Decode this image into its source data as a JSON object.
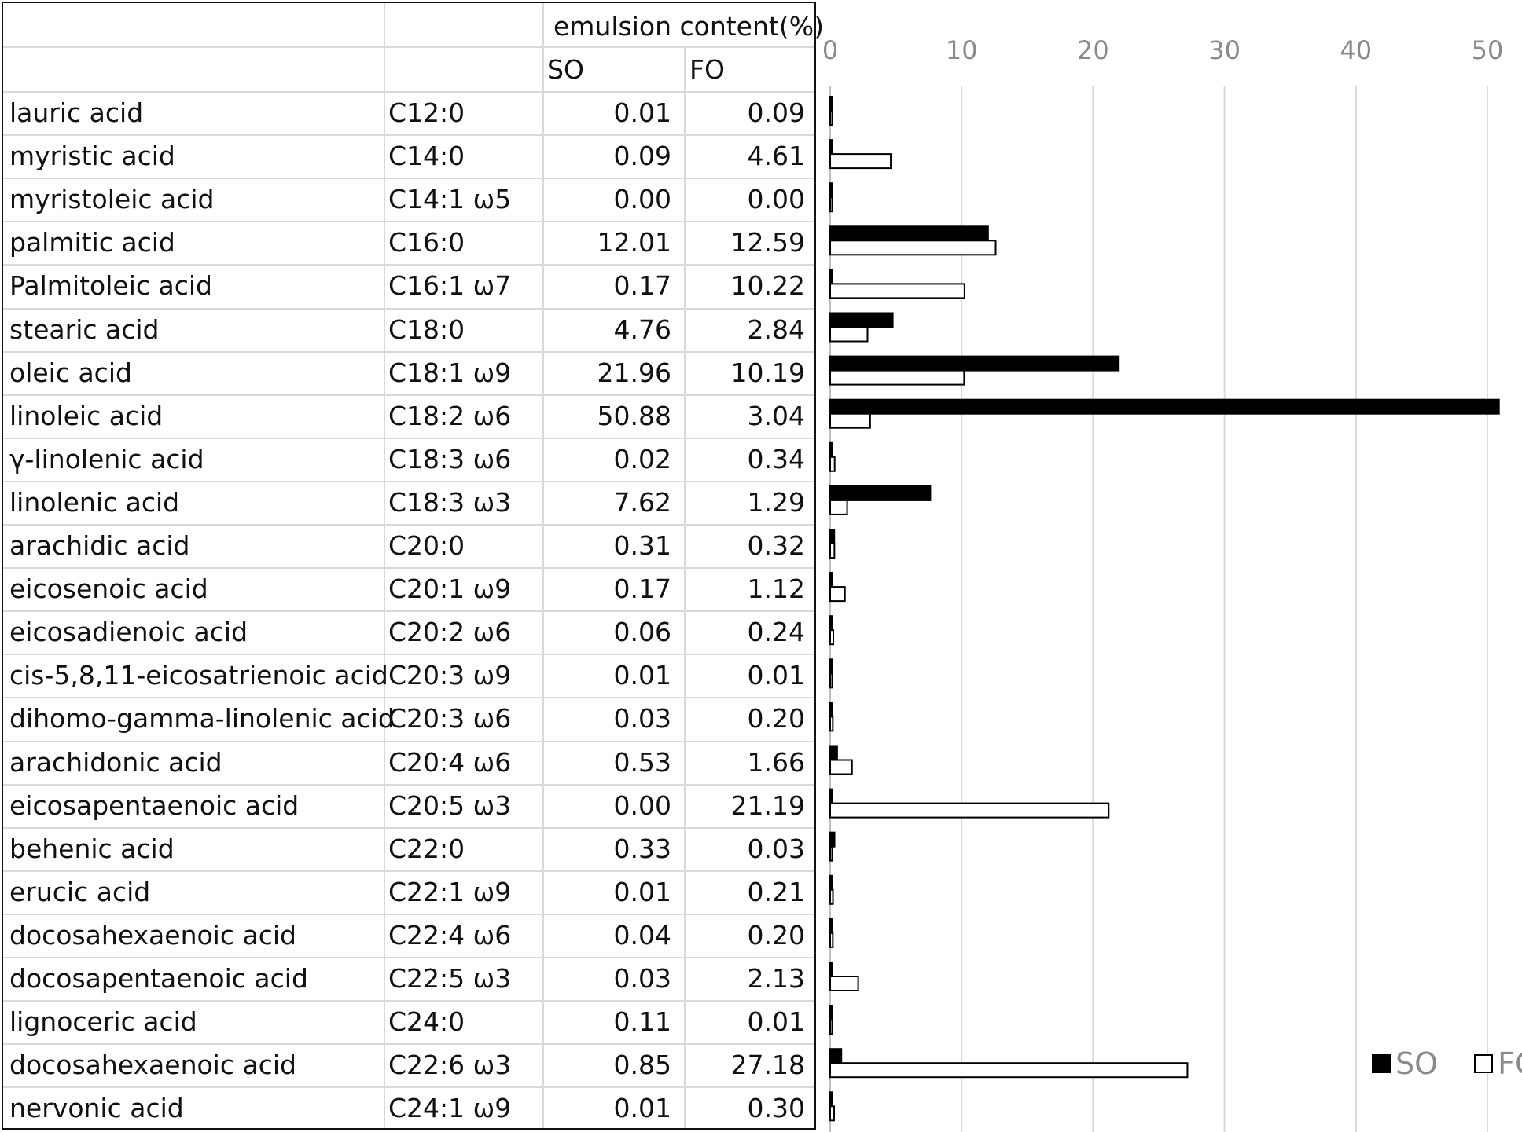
{
  "table": {
    "header_group": "emulsion content(%)",
    "col_so": "SO",
    "col_fo": "FO",
    "rows": [
      {
        "name": "lauric acid",
        "formula": "C12:0",
        "so": "0.01",
        "fo": "0.09"
      },
      {
        "name": "myristic acid",
        "formula": "C14:0",
        "so": "0.09",
        "fo": "4.61"
      },
      {
        "name": "myristoleic acid",
        "formula": "C14:1 ω5",
        "so": "0.00",
        "fo": "0.00"
      },
      {
        "name": "palmitic acid",
        "formula": "C16:0",
        "so": "12.01",
        "fo": "12.59"
      },
      {
        "name": "Palmitoleic acid",
        "formula": "C16:1 ω7",
        "so": "0.17",
        "fo": "10.22"
      },
      {
        "name": "stearic acid",
        "formula": "C18:0",
        "so": "4.76",
        "fo": "2.84"
      },
      {
        "name": "oleic acid",
        "formula": "C18:1 ω9",
        "so": "21.96",
        "fo": "10.19"
      },
      {
        "name": "linoleic acid",
        "formula": "C18:2 ω6",
        "so": "50.88",
        "fo": "3.04"
      },
      {
        "name": "γ-linolenic acid",
        "formula": "C18:3 ω6",
        "so": "0.02",
        "fo": "0.34"
      },
      {
        "name": "linolenic acid",
        "formula": "C18:3 ω3",
        "so": "7.62",
        "fo": "1.29"
      },
      {
        "name": "arachidic acid",
        "formula": "C20:0",
        "so": "0.31",
        "fo": "0.32"
      },
      {
        "name": "eicosenoic acid",
        "formula": "C20:1 ω9",
        "so": "0.17",
        "fo": "1.12"
      },
      {
        "name": "eicosadienoic acid",
        "formula": "C20:2 ω6",
        "so": "0.06",
        "fo": "0.24"
      },
      {
        "name": "cis-5,8,11-eicosatrienoic acid",
        "formula": "C20:3 ω9",
        "so": "0.01",
        "fo": "0.01"
      },
      {
        "name": "dihomo-gamma-linolenic acid",
        "formula": "C20:3 ω6",
        "so": "0.03",
        "fo": "0.20"
      },
      {
        "name": "arachidonic acid",
        "formula": "C20:4 ω6",
        "so": "0.53",
        "fo": "1.66"
      },
      {
        "name": "eicosapentaenoic acid",
        "formula": "C20:5 ω3",
        "so": "0.00",
        "fo": "21.19"
      },
      {
        "name": "behenic acid",
        "formula": "C22:0",
        "so": "0.33",
        "fo": "0.03"
      },
      {
        "name": "erucic acid",
        "formula": "C22:1 ω9",
        "so": "0.01",
        "fo": "0.21"
      },
      {
        "name": "docosahexaenoic acid",
        "formula": "C22:4 ω6",
        "so": "0.04",
        "fo": "0.20"
      },
      {
        "name": "docosapentaenoic acid",
        "formula": "C22:5 ω3",
        "so": "0.03",
        "fo": "2.13"
      },
      {
        "name": "lignoceric acid",
        "formula": "C24:0",
        "so": "0.11",
        "fo": "0.01"
      },
      {
        "name": "docosahexaenoic acid",
        "formula": "C22:6 ω3",
        "so": "0.85",
        "fo": "27.18"
      },
      {
        "name": "nervonic acid",
        "formula": "C24:1 ω9",
        "so": "0.01",
        "fo": "0.30"
      }
    ]
  },
  "chart_data": {
    "type": "bar",
    "orientation": "horizontal",
    "xlim": [
      0,
      50
    ],
    "xticks": [
      "0",
      "10",
      "20",
      "30",
      "40",
      "50"
    ],
    "x_axis_position": "top",
    "grid": true,
    "legend_placement": "bottom-right",
    "categories": [
      "C12:0",
      "C14:0",
      "C14:1 ω5",
      "C16:0",
      "C16:1 ω7",
      "C18:0",
      "C18:1 ω9",
      "C18:2 ω6",
      "C18:3 ω6",
      "C18:3 ω3",
      "C20:0",
      "C20:1 ω9",
      "C20:2 ω6",
      "C20:3 ω9",
      "C20:3 ω6",
      "C20:4 ω6",
      "C20:5 ω3",
      "C22:0",
      "C22:1 ω9",
      "C22:4 ω6",
      "C22:5 ω3",
      "C24:0",
      "C22:6 ω3",
      "C24:1 ω9"
    ],
    "series": [
      {
        "name": "SO",
        "fill": "#000000",
        "values": [
          0.01,
          0.09,
          0.0,
          12.01,
          0.17,
          4.76,
          21.96,
          50.88,
          0.02,
          7.62,
          0.31,
          0.17,
          0.06,
          0.01,
          0.03,
          0.53,
          0.0,
          0.33,
          0.01,
          0.04,
          0.03,
          0.11,
          0.85,
          0.01
        ]
      },
      {
        "name": "FO",
        "fill": "#ffffff",
        "values": [
          0.09,
          4.61,
          0.0,
          12.59,
          10.22,
          2.84,
          10.19,
          3.04,
          0.34,
          1.29,
          0.32,
          1.12,
          0.24,
          0.01,
          0.2,
          1.66,
          21.19,
          0.03,
          0.21,
          0.2,
          2.13,
          0.01,
          27.18,
          0.3
        ]
      }
    ]
  }
}
